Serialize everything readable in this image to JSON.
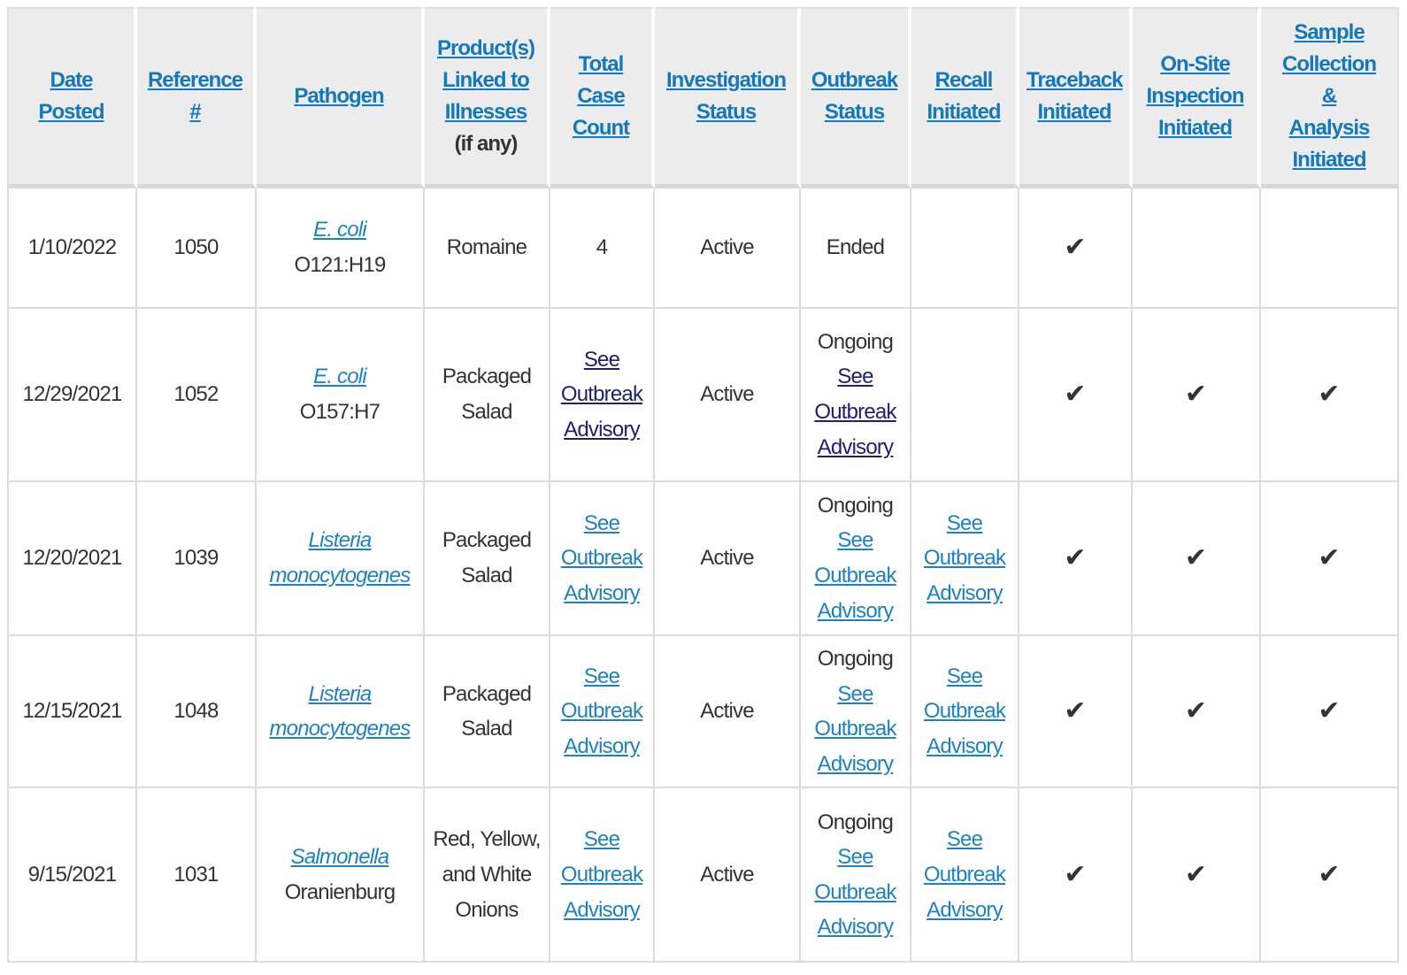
{
  "colors": {
    "header_bg": "#ececec",
    "header_link_blue": "#1378bc",
    "body_link_blue": "#1e81c2",
    "visited_link_navy": "#1f2071",
    "text": "#333333",
    "grid_line": "#dcdcdc",
    "header_divider": "#d8d8d8"
  },
  "icons": {
    "check": "✔"
  },
  "table": {
    "headers": [
      {
        "id": "date_posted",
        "label": "Date\nPosted"
      },
      {
        "id": "reference",
        "label": "Reference\n#"
      },
      {
        "id": "pathogen",
        "label": "Pathogen"
      },
      {
        "id": "products",
        "label": "Product(s)\nLinked to\nIllnesses",
        "note": "(if any)"
      },
      {
        "id": "case_count",
        "label": "Total\nCase\nCount"
      },
      {
        "id": "investigation_status",
        "label": "Investigation\nStatus"
      },
      {
        "id": "outbreak_status",
        "label": "Outbreak\nStatus"
      },
      {
        "id": "recall",
        "label": "Recall\nInitiated"
      },
      {
        "id": "traceback",
        "label": "Traceback\nInitiated"
      },
      {
        "id": "onsite",
        "label": "On-Site\nInspection\nInitiated"
      },
      {
        "id": "sample",
        "label": "Sample\nCollection\n&\nAnalysis\nInitiated"
      }
    ],
    "rows": [
      {
        "date_posted": "1/10/2022",
        "reference": "1050",
        "pathogen_link": "E. coli",
        "pathogen_rest": "O121:H19",
        "products": "Romaine",
        "case_count": {
          "type": "text",
          "text": "4"
        },
        "investigation_status": "Active",
        "outbreak_status": {
          "type": "text",
          "text": "Ended"
        },
        "recall": {
          "type": "empty"
        },
        "traceback": true,
        "onsite": false,
        "sample": false
      },
      {
        "date_posted": "12/29/2021",
        "reference": "1052",
        "pathogen_link": "E. coli",
        "pathogen_rest": "O157:H7",
        "products": "Packaged Salad",
        "case_count": {
          "type": "link",
          "text": "See Outbreak Advisory",
          "visited": true
        },
        "investigation_status": "Active",
        "outbreak_status": {
          "type": "prefix_link",
          "prefix": "Ongoing",
          "text": "See Outbreak Advisory",
          "visited": true
        },
        "recall": {
          "type": "empty"
        },
        "traceback": true,
        "onsite": true,
        "sample": true
      },
      {
        "date_posted": "12/20/2021",
        "reference": "1039",
        "pathogen_link": "Listeria monocytogenes",
        "pathogen_rest": "",
        "products": "Packaged Salad",
        "case_count": {
          "type": "link",
          "text": "See Outbreak Advisory",
          "visited": false
        },
        "investigation_status": "Active",
        "outbreak_status": {
          "type": "prefix_link",
          "prefix": "Ongoing",
          "text": "See Outbreak Advisory",
          "visited": false
        },
        "recall": {
          "type": "link",
          "text": "See Outbreak Advisory",
          "visited": false
        },
        "traceback": true,
        "onsite": true,
        "sample": true
      },
      {
        "date_posted": "12/15/2021",
        "reference": "1048",
        "pathogen_link": "Listeria monocytogenes",
        "pathogen_rest": "",
        "products": "Packaged Salad",
        "case_count": {
          "type": "link",
          "text": "See Outbreak Advisory",
          "visited": false
        },
        "investigation_status": "Active",
        "outbreak_status": {
          "type": "prefix_link",
          "prefix": "Ongoing",
          "text": "See Outbreak Advisory",
          "visited": false
        },
        "recall": {
          "type": "link",
          "text": "See Outbreak Advisory",
          "visited": false
        },
        "traceback": true,
        "onsite": true,
        "sample": true
      },
      {
        "date_posted": "9/15/2021",
        "reference": "1031",
        "pathogen_link": "Salmonella",
        "pathogen_rest": "Oranienburg",
        "products": "Red, Yellow, and White Onions",
        "case_count": {
          "type": "link",
          "text": "See Outbreak Advisory",
          "visited": false
        },
        "investigation_status": "Active",
        "outbreak_status": {
          "type": "prefix_link",
          "prefix": "Ongoing",
          "text": "See Outbreak Advisory",
          "visited": false
        },
        "recall": {
          "type": "link",
          "text": "See Outbreak Advisory",
          "visited": false
        },
        "traceback": true,
        "onsite": true,
        "sample": true
      }
    ]
  }
}
